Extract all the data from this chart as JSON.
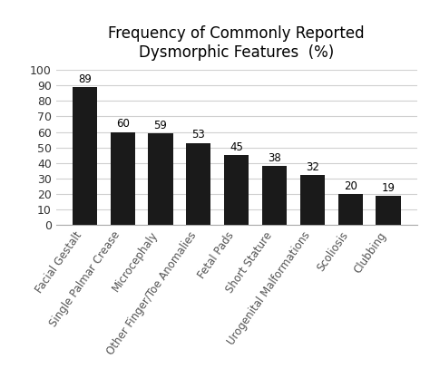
{
  "title": "Frequency of Commonly Reported\nDysmorphic Features  (%)",
  "categories": [
    "Facial Gestalt",
    "Single Palmar Crease",
    "Microcephaly",
    "Other Finger/Toe Anomalies",
    "Fetal Pads",
    "Short Stature",
    "Urogenital Malformations",
    "Scoliosis",
    "Clubbing"
  ],
  "values": [
    89,
    60,
    59,
    53,
    45,
    38,
    32,
    20,
    19
  ],
  "bar_color": "#1a1a1a",
  "background_color": "#ffffff",
  "ylim": [
    0,
    100
  ],
  "yticks": [
    0,
    10,
    20,
    30,
    40,
    50,
    60,
    70,
    80,
    90,
    100
  ],
  "title_fontsize": 12,
  "label_fontsize": 8.5,
  "tick_fontsize": 9,
  "value_fontsize": 8.5,
  "grid_color": "#d0d0d0"
}
